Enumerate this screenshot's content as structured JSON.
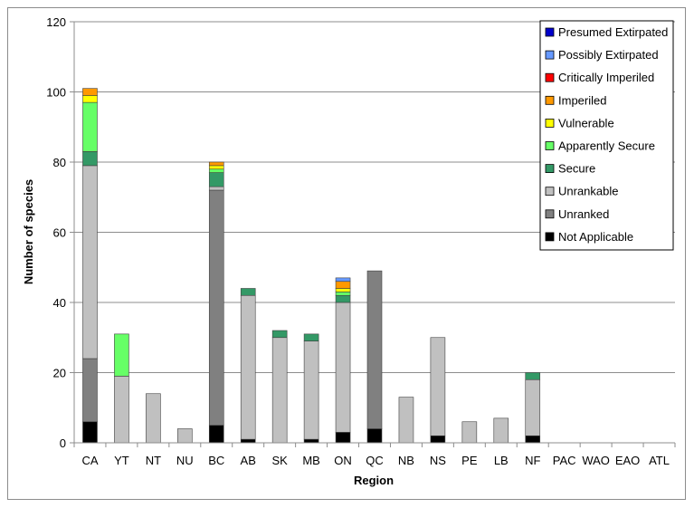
{
  "chart_data": {
    "type": "bar",
    "stacked": true,
    "title": "",
    "xlabel": "Region",
    "ylabel": "Number of species",
    "ylim": [
      0,
      120
    ],
    "yticks": [
      0,
      20,
      40,
      60,
      80,
      100,
      120
    ],
    "grid": true,
    "legend_position": "top-right",
    "categories": [
      "CA",
      "YT",
      "NT",
      "NU",
      "BC",
      "AB",
      "SK",
      "MB",
      "ON",
      "QC",
      "NB",
      "NS",
      "PE",
      "LB",
      "NF",
      "PAC",
      "WAO",
      "EAO",
      "ATL"
    ],
    "series": [
      {
        "name": "Not Applicable",
        "color": "#000000",
        "values": [
          6,
          0,
          0,
          0,
          5,
          1,
          0,
          1,
          3,
          4,
          0,
          2,
          0,
          0,
          2,
          0,
          0,
          0,
          0
        ]
      },
      {
        "name": "Unranked",
        "color": "#808080",
        "values": [
          18,
          0,
          0,
          0,
          67,
          0,
          0,
          0,
          0,
          45,
          0,
          0,
          0,
          0,
          0,
          0,
          0,
          0,
          0
        ]
      },
      {
        "name": "Unrankable",
        "color": "#c0c0c0",
        "values": [
          55,
          19,
          14,
          4,
          1,
          41,
          30,
          28,
          37,
          0,
          13,
          28,
          6,
          7,
          16,
          0,
          0,
          0,
          0
        ]
      },
      {
        "name": "Secure",
        "color": "#339966",
        "values": [
          4,
          0,
          0,
          0,
          4,
          2,
          2,
          2,
          2,
          0,
          0,
          0,
          0,
          0,
          2,
          0,
          0,
          0,
          0
        ]
      },
      {
        "name": "Apparently Secure",
        "color": "#66ff66",
        "values": [
          14,
          12,
          0,
          0,
          1,
          0,
          0,
          0,
          1,
          0,
          0,
          0,
          0,
          0,
          0,
          0,
          0,
          0,
          0
        ]
      },
      {
        "name": "Vulnerable",
        "color": "#ffff00",
        "values": [
          2,
          0,
          0,
          0,
          1,
          0,
          0,
          0,
          1,
          0,
          0,
          0,
          0,
          0,
          0,
          0,
          0,
          0,
          0
        ]
      },
      {
        "name": "Imperiled",
        "color": "#ff9900",
        "values": [
          2,
          0,
          0,
          0,
          1,
          0,
          0,
          0,
          2,
          0,
          0,
          0,
          0,
          0,
          0,
          0,
          0,
          0,
          0
        ]
      },
      {
        "name": "Critically Imperiled",
        "color": "#ff0000",
        "values": [
          0,
          0,
          0,
          0,
          0,
          0,
          0,
          0,
          0,
          0,
          0,
          0,
          0,
          0,
          0,
          0,
          0,
          0,
          0
        ]
      },
      {
        "name": "Possibly Extirpated",
        "color": "#6699ff",
        "values": [
          0,
          0,
          0,
          0,
          0,
          0,
          0,
          0,
          1,
          0,
          0,
          0,
          0,
          0,
          0,
          0,
          0,
          0,
          0
        ]
      },
      {
        "name": "Presumed Extirpated",
        "color": "#0000cc",
        "values": [
          0,
          0,
          0,
          0,
          0,
          0,
          0,
          0,
          0,
          0,
          0,
          0,
          0,
          0,
          0,
          0,
          0,
          0,
          0
        ]
      }
    ],
    "legend_order": [
      "Presumed Extirpated",
      "Possibly Extirpated",
      "Critically Imperiled",
      "Imperiled",
      "Vulnerable",
      "Apparently Secure",
      "Secure",
      "Unrankable",
      "Unranked",
      "Not Applicable"
    ]
  }
}
